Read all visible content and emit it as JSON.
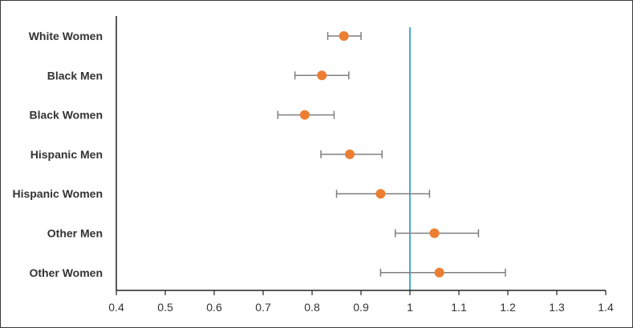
{
  "chart_data": {
    "type": "scatter",
    "categories": [
      "White Women",
      "Black Men",
      "Black Women",
      "Hispanic Men",
      "Hispanic Women",
      "Other Men",
      "Other Women"
    ],
    "series": [
      {
        "estimates": [
          0.865,
          0.82,
          0.785,
          0.877,
          0.94,
          1.05,
          1.06
        ],
        "lower": [
          0.832,
          0.765,
          0.73,
          0.818,
          0.85,
          0.97,
          0.94
        ],
        "upper": [
          0.9,
          0.875,
          0.845,
          0.943,
          1.04,
          1.14,
          1.195
        ]
      }
    ],
    "xlim": [
      0.4,
      1.4
    ],
    "xticks": [
      0.4,
      0.5,
      0.6,
      0.7,
      0.8,
      0.9,
      1,
      1.1,
      1.2,
      1.3,
      1.4
    ],
    "reference_line": 1,
    "title": "",
    "xlabel": "",
    "ylabel": "",
    "grid": false,
    "colors": {
      "point": "#ED7D31",
      "error_bar": "#7F7F7F",
      "reference_line": "#4BACC6",
      "axis": "#222222"
    }
  }
}
